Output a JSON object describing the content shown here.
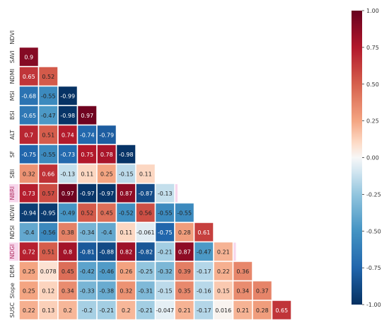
{
  "chart_data": {
    "type": "heatmap",
    "title": "",
    "xlabel": "",
    "ylabel": "",
    "x_labels": [
      "NDVI",
      "SAVI",
      "NDMI",
      "MSI",
      "BSI",
      "ALT",
      "SF",
      "SBI",
      "NBRI",
      "NDWI",
      "NDSI",
      "NDGI",
      "DEM",
      "Slope",
      "SUSC"
    ],
    "y_labels": [
      "NDVI",
      "SAVI",
      "NDMI",
      "MSI",
      "BSI",
      "ALT",
      "SF",
      "SBI",
      "NBRI",
      "NDWI",
      "NDSI",
      "NDGI",
      "DEM",
      "Slope",
      "SUSC"
    ],
    "highlighted_y_labels": [
      "NBRI",
      "NDGI"
    ],
    "mask": "upper-triangle-and-diagonal",
    "values": [
      [],
      [
        "0.9"
      ],
      [
        "0.65",
        "0.52"
      ],
      [
        "-0.68",
        "-0.55",
        "-0.99"
      ],
      [
        "-0.65",
        "-0.47",
        "-0.98",
        "0.97"
      ],
      [
        "0.7",
        "0.51",
        "0.74",
        "-0.74",
        "-0.79"
      ],
      [
        "-0.75",
        "-0.55",
        "-0.73",
        "0.75",
        "0.78",
        "-0.98"
      ],
      [
        "0.32",
        "0.66",
        "-0.13",
        "0.11",
        "0.25",
        "-0.15",
        "0.11"
      ],
      [
        "0.73",
        "0.57",
        "0.97",
        "-0.97",
        "-0.97",
        "0.87",
        "-0.87",
        "-0.13"
      ],
      [
        "-0.94",
        "-0.95",
        "-0.49",
        "0.52",
        "0.45",
        "-0.52",
        "0.56",
        "-0.55",
        "-0.55"
      ],
      [
        "-0.4",
        "-0.56",
        "0.38",
        "-0.34",
        "-0.4",
        "0.11",
        "-0.061",
        "-0.75",
        "0.28",
        "0.61"
      ],
      [
        "0.72",
        "0.51",
        "0.8",
        "-0.81",
        "-0.88",
        "0.82",
        "-0.82",
        "-0.21",
        "0.87",
        "-0.47",
        "0.21"
      ],
      [
        "0.25",
        "0.078",
        "0.45",
        "-0.42",
        "-0.46",
        "0.26",
        "-0.25",
        "-0.32",
        "0.39",
        "-0.17",
        "0.22",
        "0.36"
      ],
      [
        "0.25",
        "0.12",
        "0.34",
        "-0.33",
        "-0.38",
        "0.32",
        "-0.31",
        "-0.15",
        "0.35",
        "-0.16",
        "0.15",
        "0.34",
        "0.37"
      ],
      [
        "0.22",
        "0.13",
        "0.2",
        "-0.2",
        "-0.21",
        "0.2",
        "-0.21",
        "-0.047",
        "0.21",
        "-0.17",
        "0.016",
        "0.21",
        "0.28",
        "0.65"
      ]
    ],
    "colorbar": {
      "colormap": "RdBu_r",
      "range": [
        -1,
        1
      ],
      "ticks": [
        "1.00",
        "0.75",
        "0.50",
        "0.25",
        "0.00",
        "-0.25",
        "-0.50",
        "-0.75",
        "-1.00"
      ]
    }
  },
  "colors": {
    "label_text": "#333333",
    "highlight_label": "#b03060",
    "highlight_band": "#f7d6ec",
    "cell_border": "#ffffff",
    "dark_cell_text": "#ffffff",
    "light_cell_text": "#222222"
  }
}
